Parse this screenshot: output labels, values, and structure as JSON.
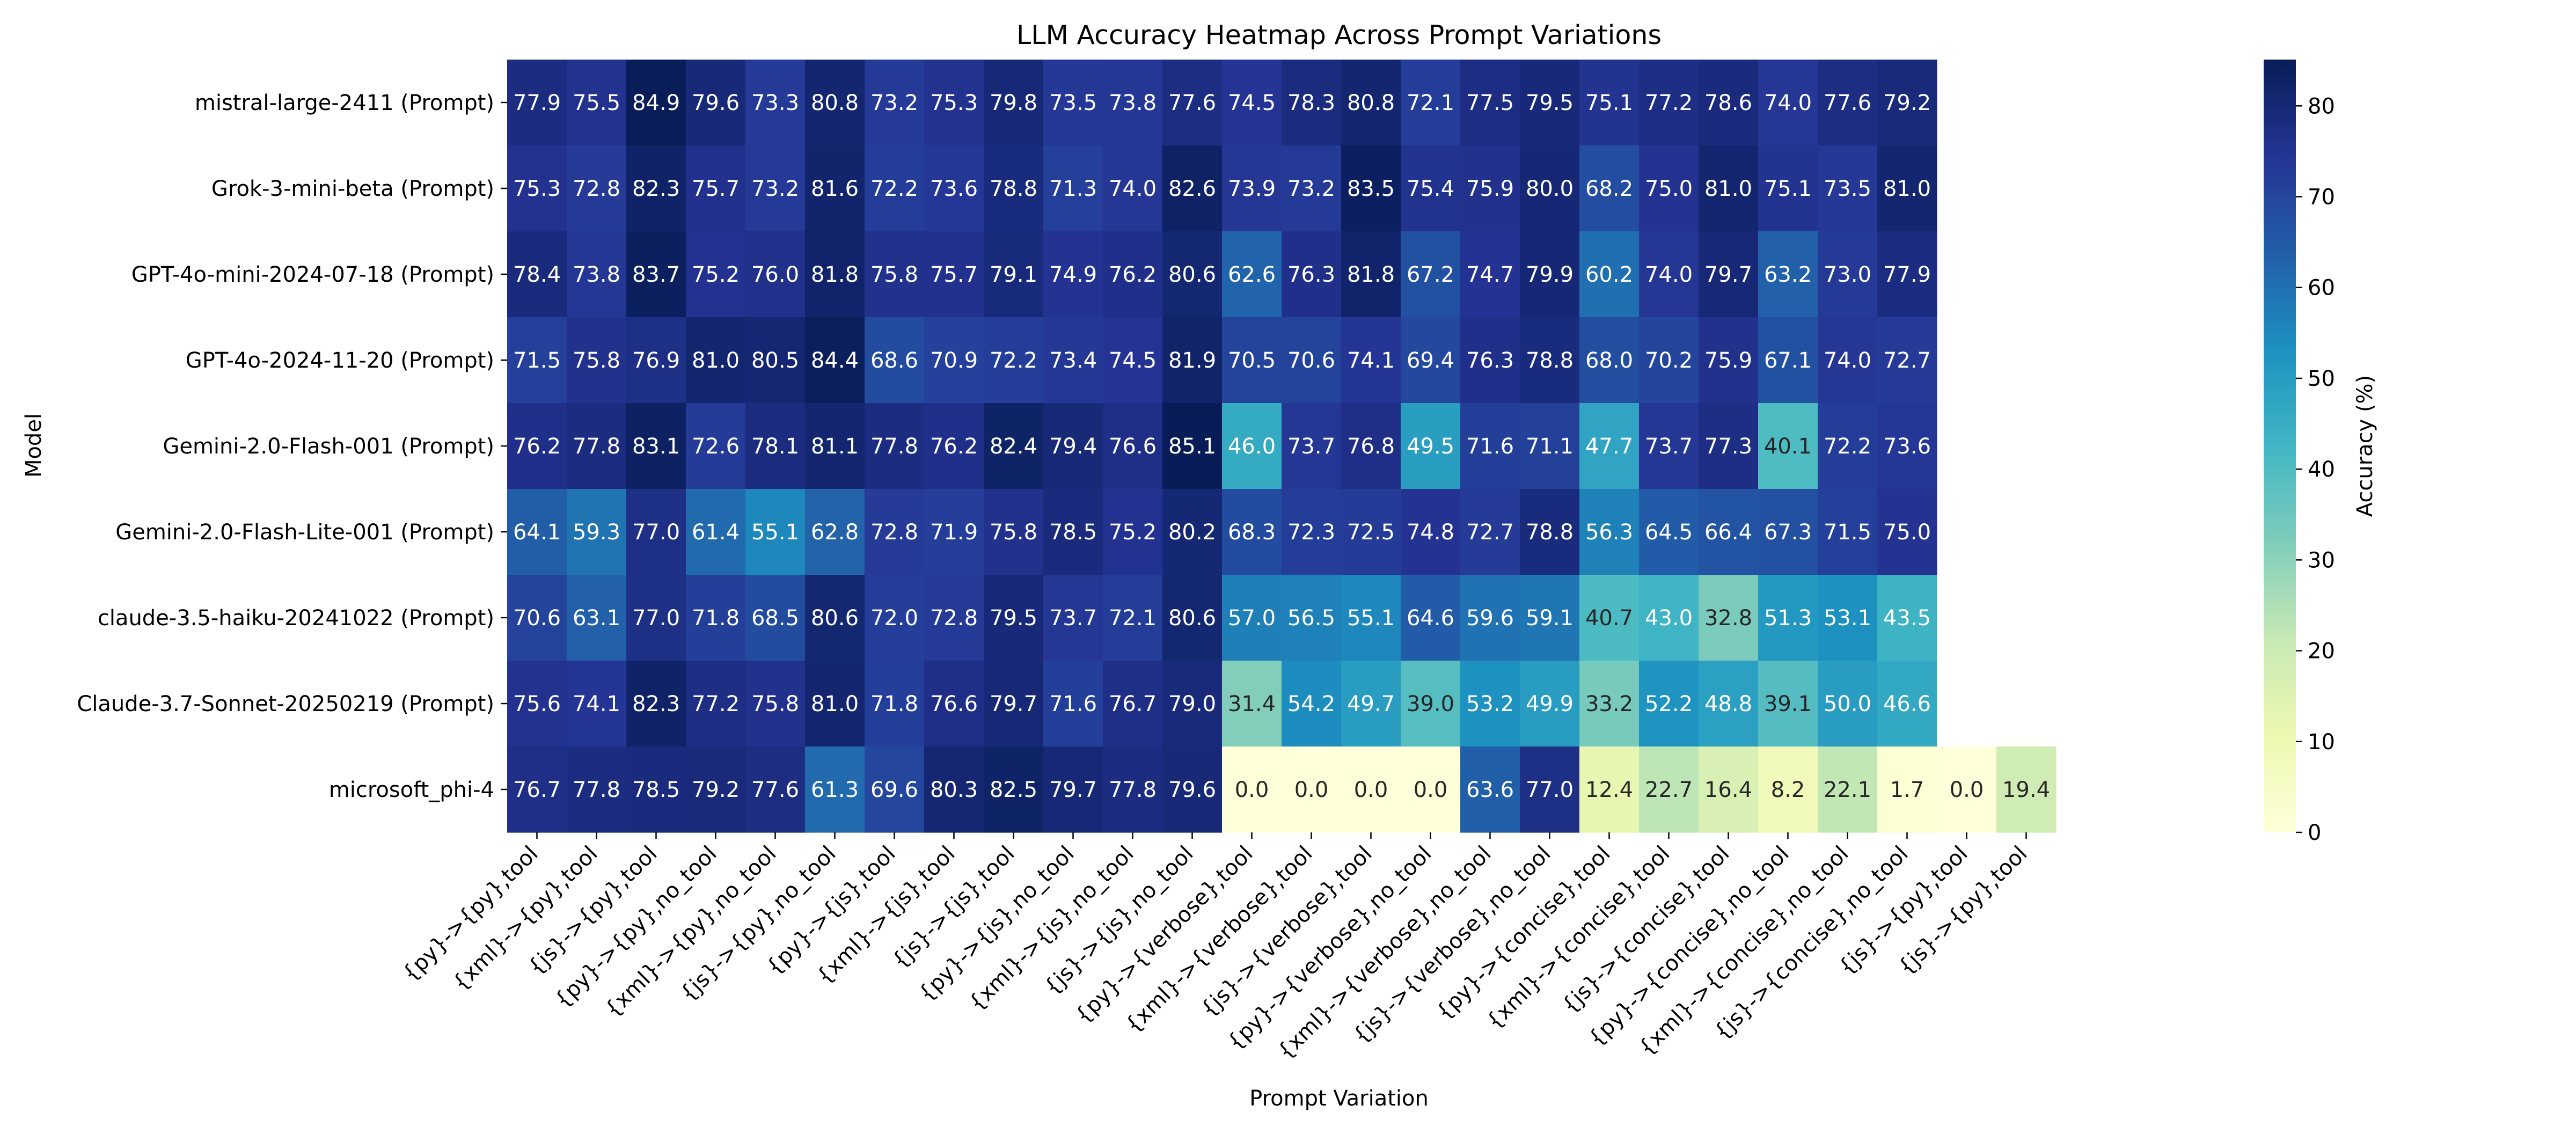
{
  "chart_data": {
    "type": "heatmap",
    "title": "LLM Accuracy Heatmap Across Prompt Variations",
    "xlabel": "Prompt Variation",
    "ylabel": "Model",
    "colorbar_label": "Accuracy (%)",
    "colorbar_ticks": [
      "0",
      "10",
      "20",
      "30",
      "40",
      "50",
      "60",
      "70",
      "80"
    ],
    "value_range": [
      0,
      85.1
    ],
    "colormap": "YlGnBu",
    "colormap_stops": [
      "#ffffd9",
      "#edf8b1",
      "#c7e9b4",
      "#7fcdbb",
      "#41b6c4",
      "#1d91c0",
      "#225ea8",
      "#253494",
      "#081d58"
    ],
    "columns": [
      "{py}->{py},tool",
      "{xml}->{py},tool",
      "{js}->{py},tool",
      "{py}->{py},no_tool",
      "{xml}->{py},no_tool",
      "{js}->{py},no_tool",
      "{py}->{js},tool",
      "{xml}->{js},tool",
      "{js}->{js},tool",
      "{py}->{js},no_tool",
      "{xml}->{js},no_tool",
      "{js}->{js},no_tool",
      "{py}->{verbose},tool",
      "{xml}->{verbose},tool",
      "{js}->{verbose},tool",
      "{py}->{verbose},no_tool",
      "{xml}->{verbose},no_tool",
      "{js}->{verbose},no_tool",
      "{py}->{concise},tool",
      "{xml}->{concise},tool",
      "{js}->{concise},tool",
      "{py}->{concise},no_tool",
      "{xml}->{concise},no_tool",
      "{js}->{concise},no_tool",
      "{js}->{py},tool",
      "{js}->{py},tool"
    ],
    "rows": [
      "mistral-large-2411 (Prompt)",
      "Grok-3-mini-beta (Prompt)",
      "GPT-4o-mini-2024-07-18 (Prompt)",
      "GPT-4o-2024-11-20 (Prompt)",
      "Gemini-2.0-Flash-001 (Prompt)",
      "Gemini-2.0-Flash-Lite-001 (Prompt)",
      "claude-3.5-haiku-20241022 (Prompt)",
      "Claude-3.7-Sonnet-20250219 (Prompt)",
      "microsoft_phi-4"
    ],
    "values": [
      [
        77.9,
        75.5,
        84.9,
        79.6,
        73.3,
        80.8,
        73.2,
        75.3,
        79.8,
        73.5,
        73.8,
        77.6,
        74.5,
        78.3,
        80.8,
        72.1,
        77.5,
        79.5,
        75.1,
        77.2,
        78.6,
        74.0,
        77.6,
        79.2,
        null,
        null
      ],
      [
        75.3,
        72.8,
        82.3,
        75.7,
        73.2,
        81.6,
        72.2,
        73.6,
        78.8,
        71.3,
        74.0,
        82.6,
        73.9,
        73.2,
        83.5,
        75.4,
        75.9,
        80.0,
        68.2,
        75.0,
        81.0,
        75.1,
        73.5,
        81.0,
        null,
        null
      ],
      [
        78.4,
        73.8,
        83.7,
        75.2,
        76.0,
        81.8,
        75.8,
        75.7,
        79.1,
        74.9,
        76.2,
        80.6,
        62.6,
        76.3,
        81.8,
        67.2,
        74.7,
        79.9,
        60.2,
        74.0,
        79.7,
        63.2,
        73.0,
        77.9,
        null,
        null
      ],
      [
        71.5,
        75.8,
        76.9,
        81.0,
        80.5,
        84.4,
        68.6,
        70.9,
        72.2,
        73.4,
        74.5,
        81.9,
        70.5,
        70.6,
        74.1,
        69.4,
        76.3,
        78.8,
        68.0,
        70.2,
        75.9,
        67.1,
        74.0,
        72.7,
        null,
        null
      ],
      [
        76.2,
        77.8,
        83.1,
        72.6,
        78.1,
        81.1,
        77.8,
        76.2,
        82.4,
        79.4,
        76.6,
        85.1,
        46.0,
        73.7,
        76.8,
        49.5,
        71.6,
        71.1,
        47.7,
        73.7,
        77.3,
        40.1,
        72.2,
        73.6,
        null,
        null
      ],
      [
        64.1,
        59.3,
        77.0,
        61.4,
        55.1,
        62.8,
        72.8,
        71.9,
        75.8,
        78.5,
        75.2,
        80.2,
        68.3,
        72.3,
        72.5,
        74.8,
        72.7,
        78.8,
        56.3,
        64.5,
        66.4,
        67.3,
        71.5,
        75.0,
        null,
        null
      ],
      [
        70.6,
        63.1,
        77.0,
        71.8,
        68.5,
        80.6,
        72.0,
        72.8,
        79.5,
        73.7,
        72.1,
        80.6,
        57.0,
        56.5,
        55.1,
        64.6,
        59.6,
        59.1,
        40.7,
        43.0,
        32.8,
        51.3,
        53.1,
        43.5,
        null,
        null
      ],
      [
        75.6,
        74.1,
        82.3,
        77.2,
        75.8,
        81.0,
        71.8,
        76.6,
        79.7,
        71.6,
        76.7,
        79.0,
        31.4,
        54.2,
        49.7,
        39.0,
        53.2,
        49.9,
        33.2,
        52.2,
        48.8,
        39.1,
        50.0,
        46.6,
        null,
        null
      ],
      [
        76.7,
        77.8,
        78.5,
        79.2,
        77.6,
        61.3,
        69.6,
        80.3,
        82.5,
        79.7,
        77.8,
        79.6,
        0.0,
        0.0,
        0.0,
        0.0,
        63.6,
        77.0,
        12.4,
        22.7,
        16.4,
        8.2,
        22.1,
        1.7,
        0.0,
        19.4
      ]
    ]
  }
}
